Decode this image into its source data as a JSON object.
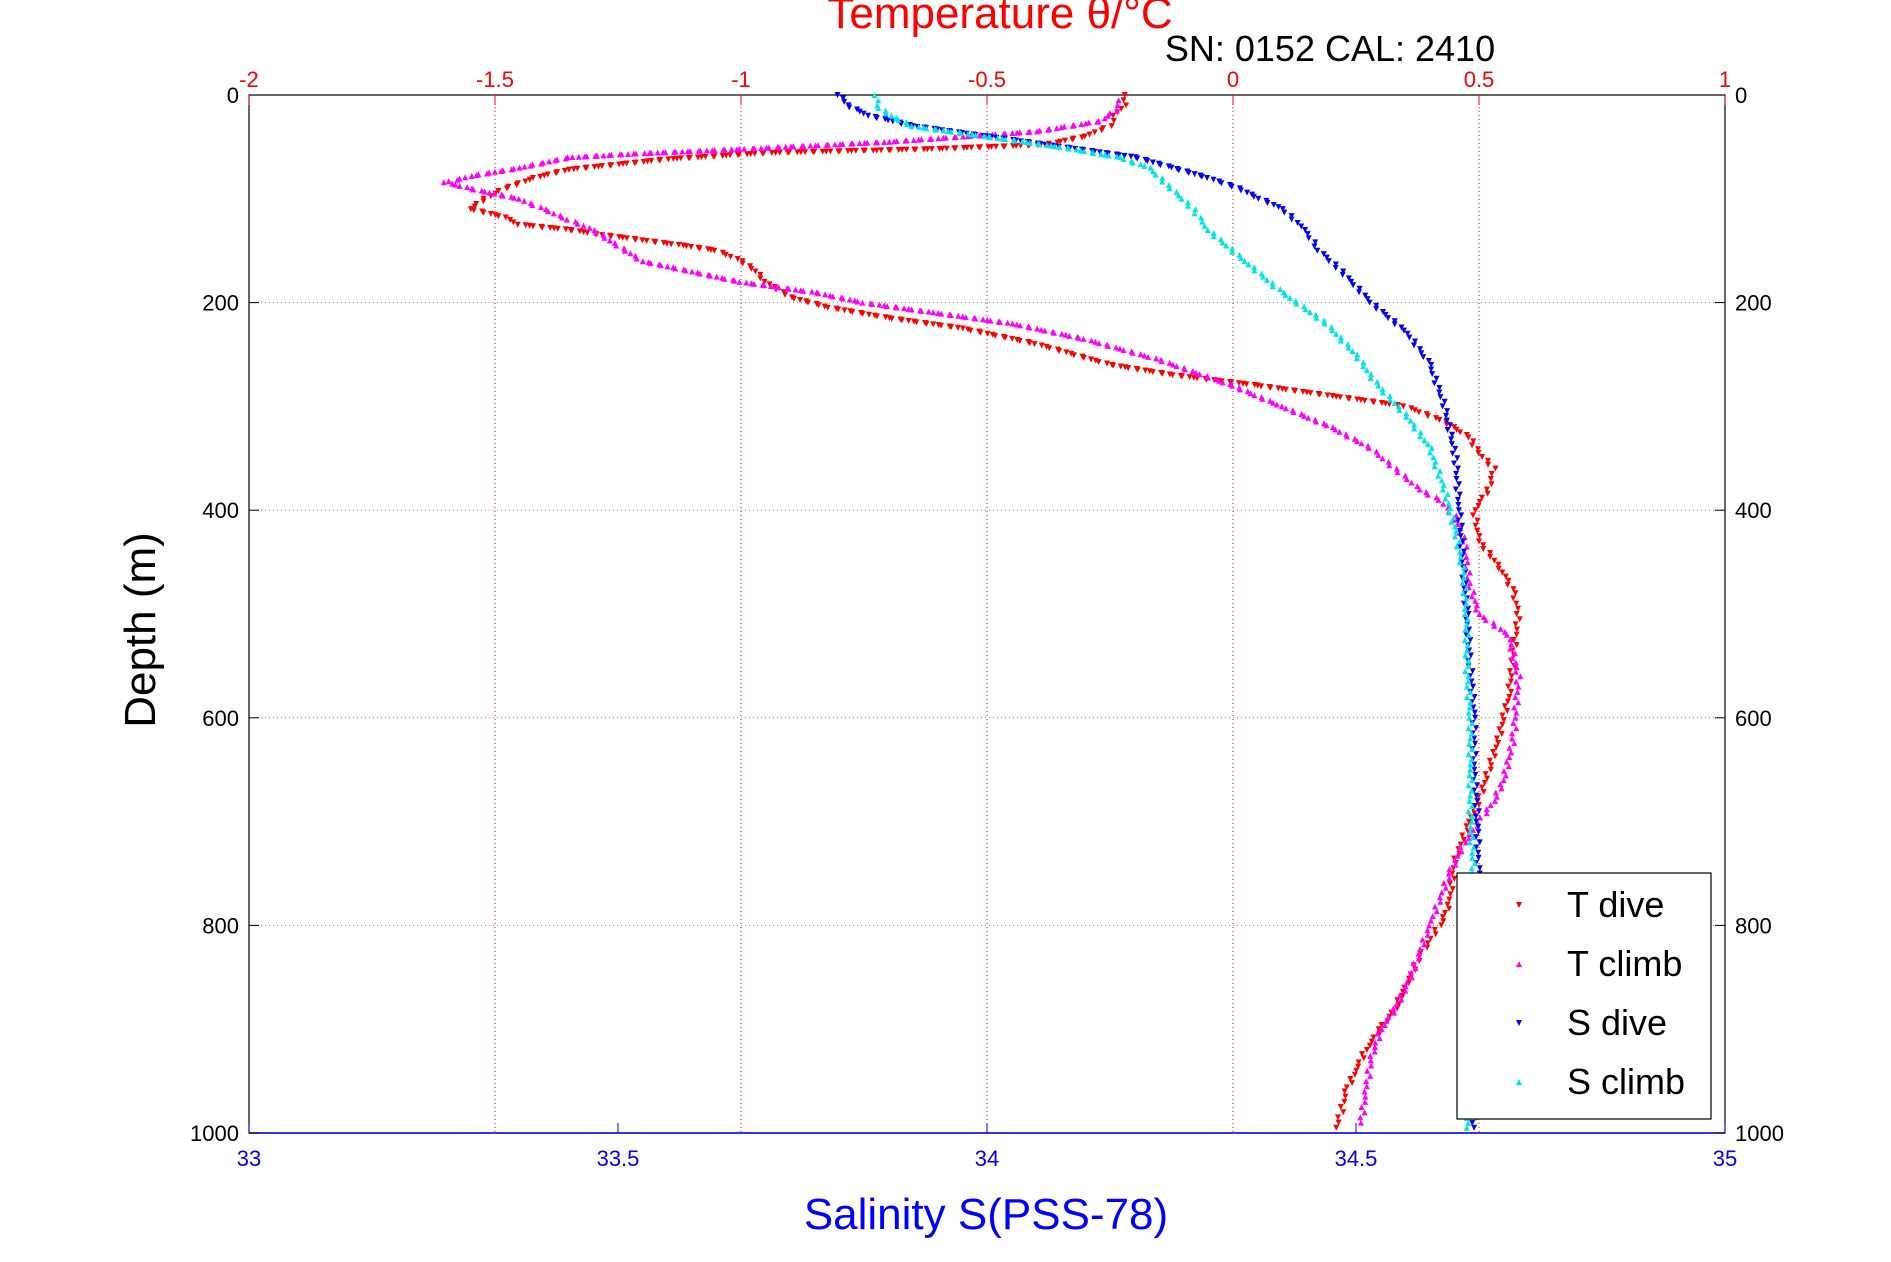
{
  "chart_data": {
    "type": "scatter",
    "title": "Temperature θ/°C",
    "subtitle": "SN: 0152  CAL: 2410",
    "xlabel_bottom": "Salinity S(PSS-78)",
    "xlabel_top": "Temperature θ/°C",
    "ylabel": "Depth (m)",
    "x_top_lim": [
      -2,
      1
    ],
    "x_bottom_lim": [
      33,
      35
    ],
    "ylim": [
      0,
      1000
    ],
    "y_reversed": true,
    "grid": true,
    "legend_position": "bottom-right",
    "x_top_ticks": [
      "-2",
      "-1.5",
      "-1",
      "-0.5",
      "0",
      "0.5",
      "1"
    ],
    "x_bottom_ticks": [
      "33",
      "33.5",
      "34",
      "34.5",
      "35"
    ],
    "y_ticks": [
      "0",
      "200",
      "400",
      "600",
      "800",
      "1000"
    ],
    "colors": {
      "top_axis": "#ff0000",
      "bottom_axis": "#0000ff",
      "grid": "#888888"
    },
    "series": [
      {
        "name": "T dive",
        "axis": "temperature",
        "color": "#ff0000",
        "marker": "triangle-down",
        "x": [
          -0.22,
          -0.22,
          -0.24,
          -0.25,
          -0.3,
          -0.38,
          -0.6,
          -0.95,
          -1.15,
          -1.35,
          -1.42,
          -1.48,
          -1.52,
          -1.55,
          -1.48,
          -1.45,
          -1.35,
          -1.28,
          -1.2,
          -1.12,
          -1.05,
          -1.0,
          -0.97,
          -0.95,
          -0.9,
          -0.82,
          -0.7,
          -0.55,
          -0.4,
          -0.25,
          -0.12,
          0.05,
          0.2,
          0.35,
          0.43,
          0.48,
          0.5,
          0.53,
          0.52,
          0.49,
          0.5,
          0.55,
          0.57,
          0.58,
          0.57,
          0.56,
          0.54,
          0.52,
          0.5,
          0.48,
          0.45,
          0.44,
          0.42,
          0.38,
          0.35,
          0.33,
          0.3,
          0.27,
          0.25,
          0.23,
          0.22,
          0.21
        ],
        "y": [
          0,
          10,
          20,
          30,
          40,
          48,
          52,
          56,
          62,
          72,
          80,
          90,
          100,
          110,
          118,
          125,
          130,
          135,
          140,
          145,
          150,
          160,
          170,
          180,
          195,
          205,
          215,
          225,
          240,
          260,
          270,
          280,
          290,
          300,
          315,
          330,
          345,
          360,
          380,
          400,
          430,
          460,
          480,
          500,
          540,
          580,
          620,
          650,
          680,
          700,
          740,
          780,
          800,
          830,
          860,
          880,
          900,
          920,
          940,
          960,
          980,
          995
        ]
      },
      {
        "name": "T climb",
        "axis": "temperature",
        "color": "#ff00ff",
        "marker": "triangle-up",
        "x": [
          -0.23,
          -0.24,
          -0.27,
          -0.4,
          -0.7,
          -1.0,
          -1.2,
          -1.35,
          -1.45,
          -1.55,
          -1.6,
          -1.55,
          -1.5,
          -1.45,
          -1.4,
          -1.35,
          -1.3,
          -1.2,
          -1.0,
          -0.85,
          -0.75,
          -0.6,
          -0.45,
          -0.3,
          -0.15,
          0.0,
          0.1,
          0.2,
          0.28,
          0.33,
          0.38,
          0.42,
          0.45,
          0.47,
          0.48,
          0.5,
          0.56,
          0.58,
          0.57,
          0.55,
          0.53,
          0.5,
          0.47,
          0.44,
          0.4,
          0.36,
          0.33,
          0.3,
          0.28,
          0.27,
          0.26
        ],
        "y": [
          5,
          15,
          25,
          35,
          45,
          52,
          56,
          60,
          70,
          78,
          84,
          90,
          95,
          100,
          110,
          120,
          130,
          160,
          180,
          190,
          200,
          210,
          220,
          235,
          255,
          280,
          300,
          320,
          340,
          360,
          380,
          390,
          405,
          430,
          470,
          500,
          520,
          560,
          620,
          660,
          680,
          700,
          720,
          750,
          800,
          850,
          880,
          900,
          930,
          960,
          990
        ]
      },
      {
        "name": "S dive",
        "axis": "salinity",
        "color": "#0000ff",
        "marker": "triangle-down",
        "x": [
          33.8,
          33.81,
          33.84,
          33.9,
          34.0,
          34.1,
          34.2,
          34.25,
          34.3,
          34.34,
          34.37,
          34.4,
          34.43,
          34.45,
          34.48,
          34.52,
          34.57,
          34.6,
          34.62,
          34.635,
          34.64,
          34.645,
          34.65,
          34.655,
          34.66,
          34.66,
          34.665,
          34.665,
          34.665,
          34.66,
          34.66,
          34.66
        ],
        "y": [
          0,
          10,
          20,
          30,
          40,
          50,
          60,
          70,
          80,
          90,
          100,
          110,
          130,
          150,
          170,
          200,
          230,
          260,
          300,
          350,
          400,
          450,
          500,
          550,
          600,
          650,
          700,
          750,
          800,
          850,
          900,
          995
        ]
      },
      {
        "name": "S climb",
        "axis": "salinity",
        "color": "#00e5e5",
        "marker": "triangle-up",
        "x": [
          33.85,
          33.85,
          33.87,
          33.9,
          34.0,
          34.1,
          34.18,
          34.22,
          34.25,
          34.28,
          34.3,
          34.35,
          34.4,
          34.46,
          34.5,
          34.53,
          34.57,
          34.6,
          34.62,
          34.635,
          34.645,
          34.65,
          34.65,
          34.655,
          34.655,
          34.655,
          34.66,
          34.66,
          34.65
        ],
        "y": [
          0,
          10,
          20,
          30,
          40,
          50,
          60,
          70,
          90,
          110,
          130,
          160,
          190,
          220,
          250,
          280,
          310,
          340,
          380,
          420,
          460,
          500,
          550,
          600,
          650,
          700,
          750,
          800,
          995
        ]
      }
    ]
  }
}
